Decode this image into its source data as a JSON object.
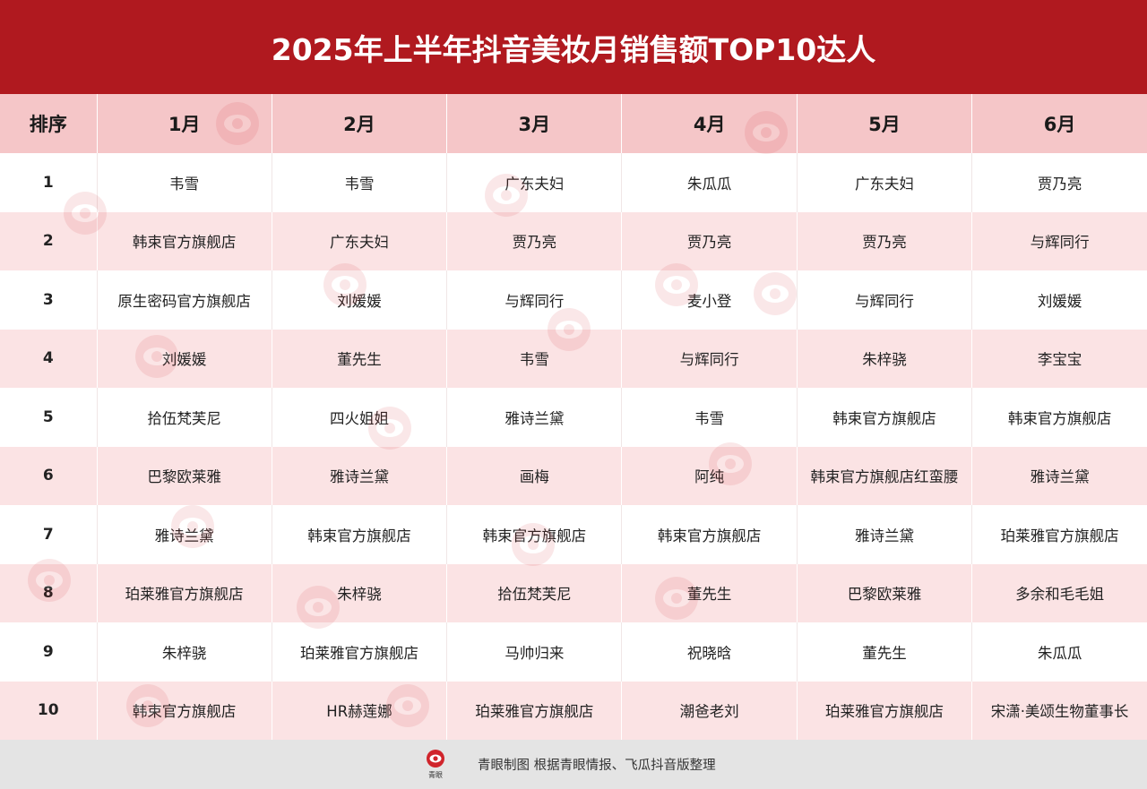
{
  "title": "2025年上半年抖音美妆月销售额TOP10达人",
  "table": {
    "headers": [
      "排序",
      "1月",
      "2月",
      "3月",
      "4月",
      "5月",
      "6月"
    ],
    "rows": [
      {
        "rank": "1",
        "cells": [
          "韦雪",
          "韦雪",
          "广东夫妇",
          "朱瓜瓜",
          "广东夫妇",
          "贾乃亮"
        ]
      },
      {
        "rank": "2",
        "cells": [
          "韩束官方旗舰店",
          "广东夫妇",
          "贾乃亮",
          "贾乃亮",
          "贾乃亮",
          "与辉同行"
        ]
      },
      {
        "rank": "3",
        "cells": [
          "原生密码官方旗舰店",
          "刘媛媛",
          "与辉同行",
          "麦小登",
          "与辉同行",
          "刘媛媛"
        ]
      },
      {
        "rank": "4",
        "cells": [
          "刘媛媛",
          "董先生",
          "韦雪",
          "与辉同行",
          "朱梓骁",
          "李宝宝"
        ]
      },
      {
        "rank": "5",
        "cells": [
          "拾伍梵芙尼",
          "四火姐姐",
          "雅诗兰黛",
          "韦雪",
          "韩束官方旗舰店",
          "韩束官方旗舰店"
        ]
      },
      {
        "rank": "6",
        "cells": [
          "巴黎欧莱雅",
          "雅诗兰黛",
          "画梅",
          "阿纯",
          "韩束官方旗舰店红蛮腰",
          "雅诗兰黛"
        ]
      },
      {
        "rank": "7",
        "cells": [
          "雅诗兰黛",
          "韩束官方旗舰店",
          "韩束官方旗舰店",
          "韩束官方旗舰店",
          "雅诗兰黛",
          "珀莱雅官方旗舰店"
        ]
      },
      {
        "rank": "8",
        "cells": [
          "珀莱雅官方旗舰店",
          "朱梓骁",
          "拾伍梵芙尼",
          "董先生",
          "巴黎欧莱雅",
          "多余和毛毛姐"
        ]
      },
      {
        "rank": "9",
        "cells": [
          "朱梓骁",
          "珀莱雅官方旗舰店",
          "马帅归来",
          "祝晓晗",
          "董先生",
          "朱瓜瓜"
        ]
      },
      {
        "rank": "10",
        "cells": [
          "韩束官方旗舰店",
          "HR赫莲娜",
          "珀莱雅官方旗舰店",
          "潮爸老刘",
          "珀莱雅官方旗舰店",
          "宋潇·美颂生物董事长"
        ]
      }
    ]
  },
  "footer": {
    "logo_text": "青眼",
    "source_text": "青眼制图  根据青眼情报、飞瓜抖音版整理"
  },
  "watermark_text": "青眼",
  "colors": {
    "title_bg": "#b0191f",
    "header_bg": "#f5c6c8",
    "stripe_bg": "#fbe3e4",
    "footer_bg": "#e4e4e4",
    "logo_red": "#d0242b"
  }
}
